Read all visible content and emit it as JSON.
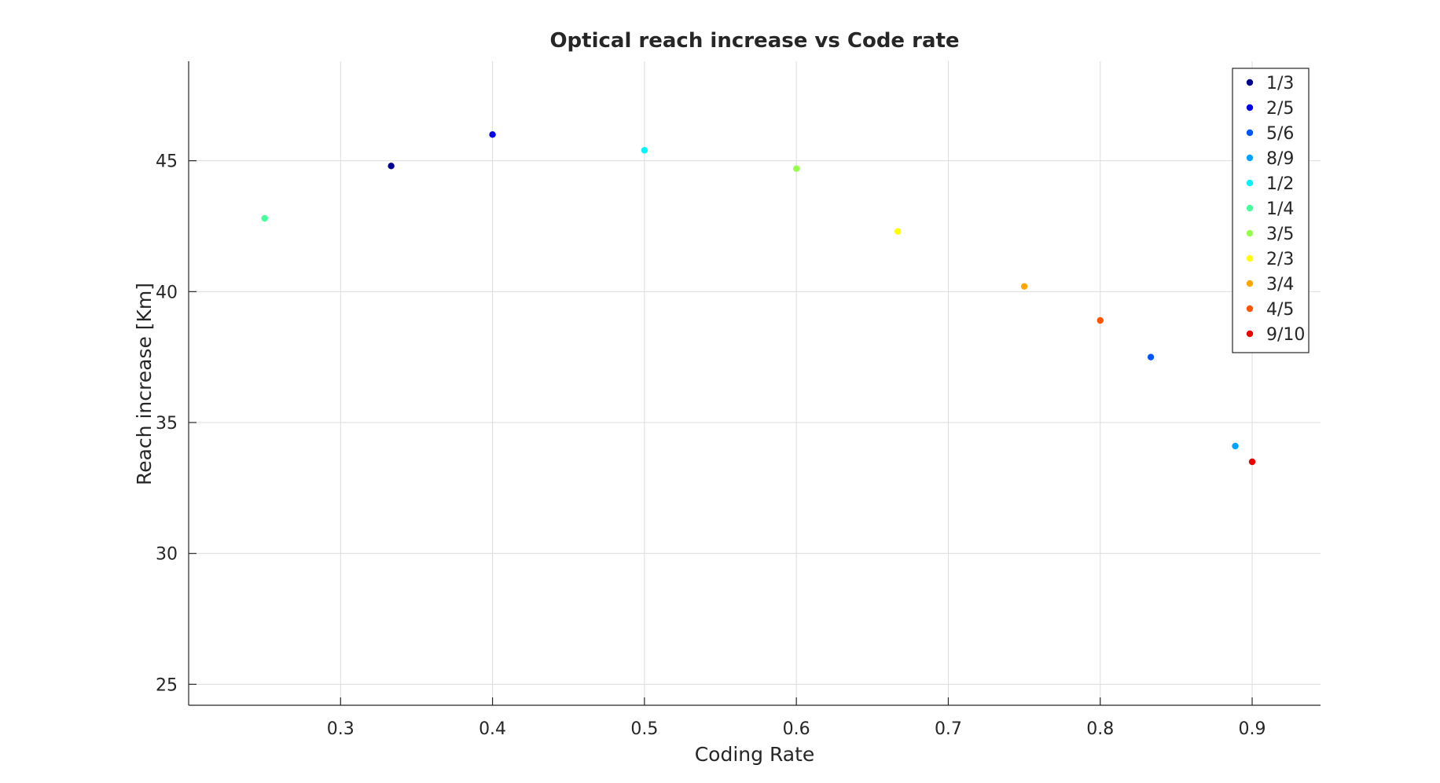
{
  "chart_data": {
    "type": "scatter",
    "title": "Optical reach increase vs Code rate",
    "xlabel": "Coding Rate",
    "ylabel": "Reach increase [Km]",
    "xlim": [
      0.2,
      0.945
    ],
    "ylim": [
      24.2,
      48.8
    ],
    "xticks": [
      0.3,
      0.4,
      0.5,
      0.6,
      0.7,
      0.8,
      0.9
    ],
    "xtick_labels": [
      "0.3",
      "0.4",
      "0.5",
      "0.6",
      "0.7",
      "0.8",
      "0.9"
    ],
    "yticks": [
      25,
      30,
      35,
      40,
      45
    ],
    "ytick_labels": [
      "25",
      "30",
      "35",
      "40",
      "45"
    ],
    "grid": true,
    "legend_position": "top-right",
    "series": [
      {
        "name": "1/3",
        "color": "#00008f",
        "x": [
          0.3333
        ],
        "y": [
          44.8
        ]
      },
      {
        "name": "2/5",
        "color": "#0000ee",
        "x": [
          0.4
        ],
        "y": [
          46.0
        ]
      },
      {
        "name": "5/6",
        "color": "#0055ff",
        "x": [
          0.8333
        ],
        "y": [
          37.5
        ]
      },
      {
        "name": "8/9",
        "color": "#00a5ff",
        "x": [
          0.8889
        ],
        "y": [
          34.1
        ]
      },
      {
        "name": "1/2",
        "color": "#00f5ff",
        "x": [
          0.5
        ],
        "y": [
          45.4
        ]
      },
      {
        "name": "1/4",
        "color": "#45ff9b",
        "x": [
          0.25
        ],
        "y": [
          42.8
        ]
      },
      {
        "name": "3/5",
        "color": "#96ff4b",
        "x": [
          0.6
        ],
        "y": [
          44.7
        ]
      },
      {
        "name": "2/3",
        "color": "#ffff00",
        "x": [
          0.6667
        ],
        "y": [
          42.3
        ]
      },
      {
        "name": "3/4",
        "color": "#ffa500",
        "x": [
          0.75
        ],
        "y": [
          40.2
        ]
      },
      {
        "name": "4/5",
        "color": "#ff5500",
        "x": [
          0.8
        ],
        "y": [
          38.9
        ]
      },
      {
        "name": "9/10",
        "color": "#ee0000",
        "x": [
          0.9
        ],
        "y": [
          33.5
        ]
      }
    ]
  }
}
